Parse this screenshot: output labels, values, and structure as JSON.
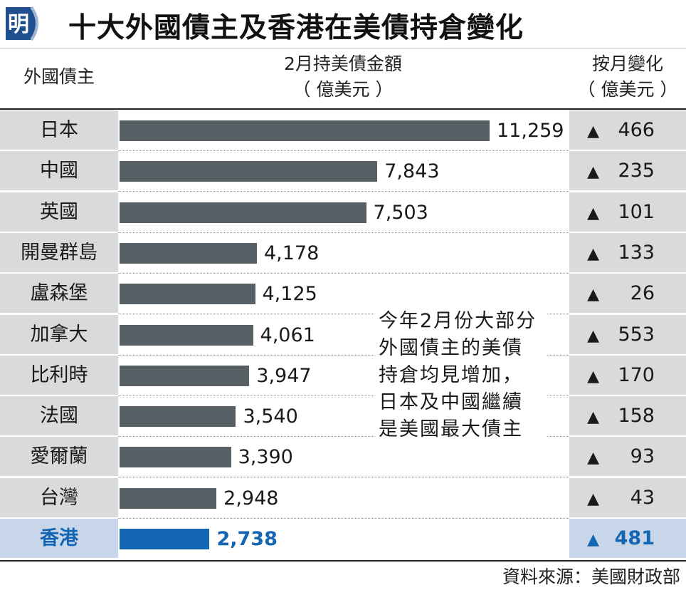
{
  "header": {
    "logo_char": "明",
    "title": "十大外國債主及香港在美債持倉變化"
  },
  "columns": {
    "debtor": "外國債主",
    "amount_line1": "2月持美債金額",
    "amount_line2": "（ 億美元 ）",
    "change_line1": "按月變化",
    "change_line2": "（ 億美元 ）"
  },
  "colors": {
    "bar": "#576064",
    "highlight": "#1466b3",
    "cell_bg": "#d9dadb",
    "highlight_bg": "#c8d6ea",
    "increase_symbol": "▲"
  },
  "rows": [
    {
      "name": "日本",
      "value": "11,259",
      "change": "466"
    },
    {
      "name": "中國",
      "value": "7,843",
      "change": "235"
    },
    {
      "name": "英國",
      "value": "7,503",
      "change": "101"
    },
    {
      "name": "開曼群島",
      "value": "4,178",
      "change": "133"
    },
    {
      "name": "盧森堡",
      "value": "4,125",
      "change": "26"
    },
    {
      "name": "加拿大",
      "value": "4,061",
      "change": "553"
    },
    {
      "name": "比利時",
      "value": "3,947",
      "change": "170"
    },
    {
      "name": "法國",
      "value": "3,540",
      "change": "158"
    },
    {
      "name": "愛爾蘭",
      "value": "3,390",
      "change": "93"
    },
    {
      "name": "台灣",
      "value": "2,948",
      "change": "43"
    },
    {
      "name": "香港",
      "value": "2,738",
      "change": "481"
    }
  ],
  "chart_data": {
    "type": "bar",
    "orientation": "horizontal",
    "title": "十大外國債主及香港在美債持倉變化",
    "categories": [
      "日本",
      "中國",
      "英國",
      "開曼群島",
      "盧森堡",
      "加拿大",
      "比利時",
      "法國",
      "愛爾蘭",
      "台灣",
      "香港"
    ],
    "series": [
      {
        "name": "2月持美債金額（億美元）",
        "values": [
          11259,
          7843,
          7503,
          4178,
          4125,
          4061,
          3947,
          3540,
          3390,
          2948,
          2738
        ]
      },
      {
        "name": "按月變化（億美元）",
        "values": [
          466,
          235,
          101,
          133,
          26,
          553,
          170,
          158,
          93,
          43,
          481
        ]
      }
    ],
    "highlight_category": "香港",
    "grid": false
  },
  "note": "今年2月份大部分外國債主的美債持倉均見增加，日本及中國繼續是美國最大債主",
  "source": "資料來源：美國財政部"
}
